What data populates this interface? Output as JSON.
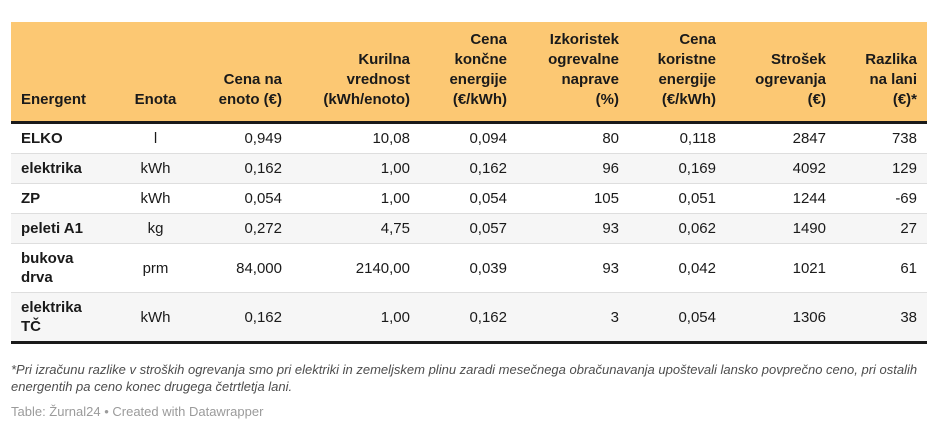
{
  "colors": {
    "header_bg": "#fcc873",
    "stripe_bg": "#f6f6f6",
    "thick_border": "#1a1a1a",
    "row_separator": "#dedede",
    "footnote_text": "#4d4d4d",
    "credit_text": "#9b9b9b"
  },
  "chart_data": {
    "type": "table",
    "columns": [
      {
        "label": "Energent",
        "lines": [
          "Energent"
        ],
        "align": "left"
      },
      {
        "label": "Enota",
        "lines": [
          "Enota"
        ],
        "align": "center"
      },
      {
        "label": "Cena na enoto (€)",
        "lines": [
          "Cena na",
          "enoto (€)"
        ],
        "align": "right"
      },
      {
        "label": "Kurilna vrednost (kWh/enoto)",
        "lines": [
          "Kurilna",
          "vrednost",
          "(kWh/enoto)"
        ],
        "align": "right"
      },
      {
        "label": "Cena končne energije (€/kWh)",
        "lines": [
          "Cena",
          "končne",
          "energije",
          "(€/kWh)"
        ],
        "align": "right"
      },
      {
        "label": "Izkoristek ogrevalne naprave (%)",
        "lines": [
          "Izkoristek",
          "ogrevalne",
          "naprave",
          "(%)"
        ],
        "align": "right"
      },
      {
        "label": "Cena koristne energije (€/kWh)",
        "lines": [
          "Cena",
          "koristne",
          "energije",
          "(€/kWh)"
        ],
        "align": "right"
      },
      {
        "label": "Strošek ogrevanja (€)",
        "lines": [
          "Strošek",
          "ogrevanja",
          "(€)"
        ],
        "align": "right"
      },
      {
        "label": "Razlika na lani (€)*",
        "lines": [
          "Razlika",
          "na lani",
          "(€)*"
        ],
        "align": "right"
      }
    ],
    "rows": [
      [
        "ELKO",
        "l",
        "0,949",
        "10,08",
        "0,094",
        "80",
        "0,118",
        "2847",
        "738"
      ],
      [
        "elektrika",
        "kWh",
        "0,162",
        "1,00",
        "0,162",
        "96",
        "0,169",
        "4092",
        "129"
      ],
      [
        "ZP",
        "kWh",
        "0,054",
        "1,00",
        "0,054",
        "105",
        "0,051",
        "1244",
        "-69"
      ],
      [
        "peleti A1",
        "kg",
        "0,272",
        "4,75",
        "0,057",
        "93",
        "0,062",
        "1490",
        "27"
      ],
      [
        "bukova drva",
        "prm",
        "84,000",
        "2140,00",
        "0,039",
        "93",
        "0,042",
        "1021",
        "61"
      ],
      [
        "elektrika TČ",
        "kWh",
        "0,162",
        "1,00",
        "0,162",
        "3",
        "0,054",
        "1306",
        "38"
      ]
    ]
  },
  "footnote": "*Pri izračunu razlike v stroških ogrevanja smo pri elektriki in zemeljskem plinu zaradi mesečnega obračunavanja upoštevali lansko povprečno ceno, pri ostalih energentih pa ceno konec drugega četrtletja lani.",
  "credit": "Table: Žurnal24 • Created with Datawrapper"
}
